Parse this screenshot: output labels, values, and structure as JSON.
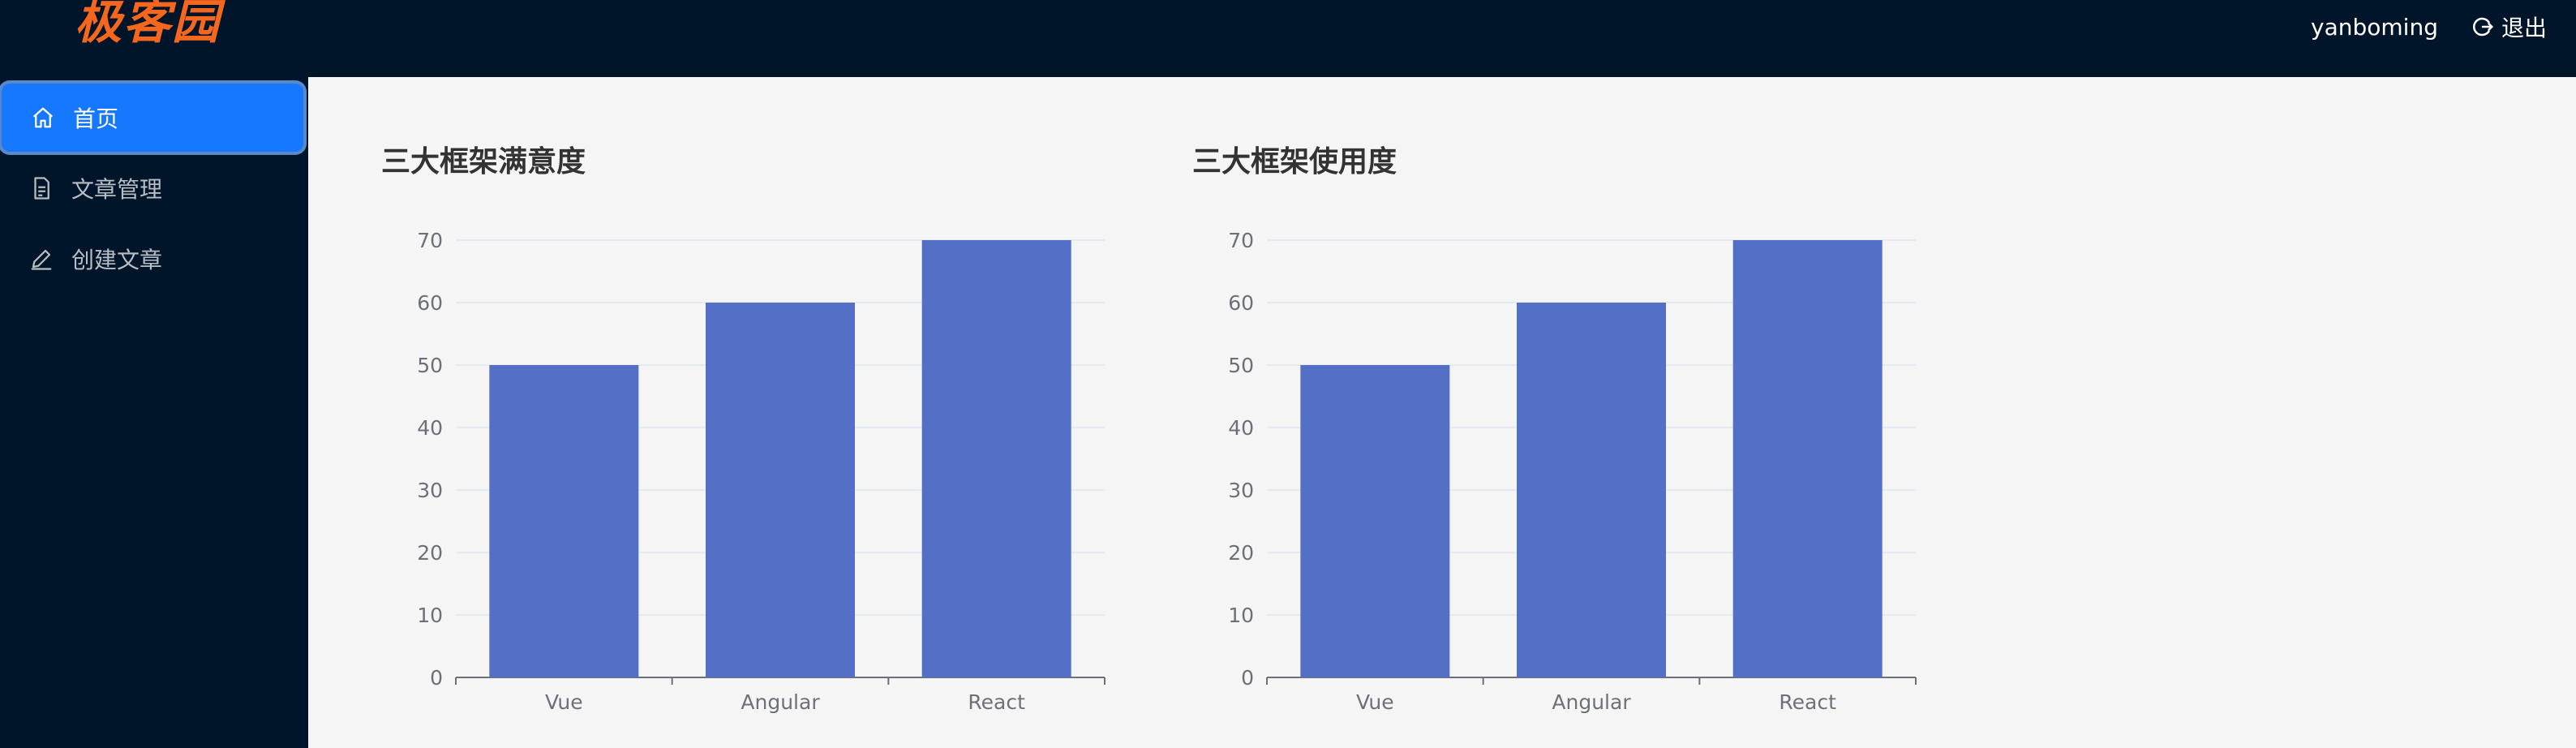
{
  "header": {
    "logo": "极客园",
    "username": "yanboming",
    "logout_label": "退出"
  },
  "sidebar": {
    "items": [
      {
        "label": "首页",
        "icon": "home-icon",
        "active": true
      },
      {
        "label": "文章管理",
        "icon": "file-icon",
        "active": false
      },
      {
        "label": "创建文章",
        "icon": "edit-icon",
        "active": false
      }
    ]
  },
  "colors": {
    "bar": "#5470c6",
    "accent": "#1677ff",
    "logo": "#f5661e",
    "header_bg": "#001529"
  },
  "chart_data": [
    {
      "type": "bar",
      "title": "三大框架满意度",
      "categories": [
        "Vue",
        "Angular",
        "React"
      ],
      "values": [
        50,
        60,
        70
      ],
      "ylim": [
        0,
        70
      ],
      "yticks": [
        0,
        10,
        20,
        30,
        40,
        50,
        60,
        70
      ],
      "grid": true
    },
    {
      "type": "bar",
      "title": "三大框架使用度",
      "categories": [
        "Vue",
        "Angular",
        "React"
      ],
      "values": [
        50,
        60,
        70
      ],
      "ylim": [
        0,
        70
      ],
      "yticks": [
        0,
        10,
        20,
        30,
        40,
        50,
        60,
        70
      ],
      "grid": true
    }
  ]
}
